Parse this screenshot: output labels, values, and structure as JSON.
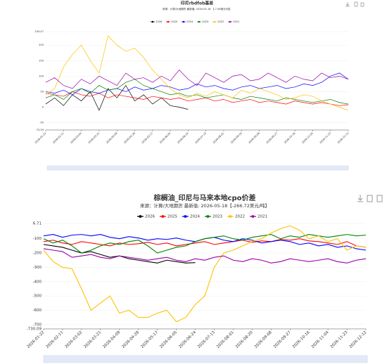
{
  "chart_data": [
    {
      "type": "line",
      "title": "印尼rbdfob基差",
      "subtitle": "来源：计算/大地期货 最新值: 2026-05-18 【-7.06美元/吨】",
      "categories": [
        "2026-01-22",
        null,
        "2026-02-11",
        null,
        "2026-03-02",
        null,
        "2026-03-21",
        null,
        "2026-04-09",
        null,
        "2026-04-28",
        null,
        "2026-05-17",
        null,
        "2026-06-05",
        null,
        "2026-06-24",
        null,
        "2026-07-13",
        null,
        "2026-08-01",
        null,
        "2026-08-20",
        null,
        "2026-09-08",
        null,
        "2026-09-27",
        null,
        "2026-10-16",
        null,
        "2026-11-04",
        null,
        "2026-11-23",
        null,
        "2026-12-12"
      ],
      "ylim": [
        -73.59,
        243.47
      ],
      "yticks": [
        243.47,
        200,
        150,
        100,
        50,
        0,
        -50,
        -73.59
      ],
      "grid": true,
      "series": [
        {
          "name": "2026",
          "color": "#000000",
          "values": [
            10,
            30,
            5,
            40,
            20,
            50,
            -10,
            60,
            30,
            70,
            20,
            40,
            10,
            30,
            5,
            0,
            -7.06,
            null,
            null,
            null,
            null,
            null,
            null,
            null,
            null,
            null,
            null,
            null,
            null,
            null,
            null,
            null,
            null,
            null,
            null
          ]
        },
        {
          "name": "2025",
          "color": "#ff0000",
          "values": [
            45,
            40,
            35,
            50,
            40,
            35,
            45,
            30,
            40,
            35,
            30,
            25,
            35,
            30,
            25,
            30,
            20,
            25,
            30,
            20,
            25,
            15,
            20,
            25,
            15,
            20,
            15,
            10,
            20,
            15,
            10,
            15,
            10,
            5,
            8
          ]
        },
        {
          "name": "2024",
          "color": "#0000ff",
          "values": [
            50,
            45,
            55,
            40,
            60,
            50,
            45,
            55,
            60,
            50,
            65,
            55,
            60,
            70,
            65,
            55,
            60,
            75,
            65,
            70,
            60,
            55,
            65,
            70,
            60,
            65,
            70,
            60,
            65,
            75,
            70,
            80,
            100,
            110,
            90
          ]
        },
        {
          "name": "2023",
          "color": "#008000",
          "values": [
            30,
            40,
            25,
            50,
            60,
            45,
            70,
            55,
            60,
            80,
            90,
            70,
            60,
            50,
            40,
            45,
            35,
            40,
            30,
            35,
            40,
            30,
            25,
            35,
            30,
            25,
            20,
            30,
            25,
            20,
            15,
            20,
            25,
            15,
            10
          ]
        },
        {
          "name": "2022",
          "color": "#ffc000",
          "values": [
            40,
            60,
            130,
            170,
            200,
            150,
            110,
            230,
            200,
            180,
            190,
            160,
            120,
            90,
            60,
            40,
            30,
            45,
            35,
            50,
            40,
            30,
            55,
            45,
            60,
            50,
            40,
            25,
            30,
            40,
            35,
            20,
            10,
            0,
            -10
          ]
        },
        {
          "name": "2021",
          "color": "#9900aa",
          "values": [
            80,
            95,
            70,
            60,
            90,
            75,
            100,
            85,
            70,
            110,
            90,
            95,
            80,
            100,
            85,
            120,
            90,
            70,
            110,
            95,
            80,
            100,
            105,
            85,
            90,
            110,
            95,
            80,
            100,
            90,
            85,
            110,
            95,
            100,
            90
          ]
        }
      ]
    },
    {
      "type": "line",
      "title": "棕榈油_印尼与马来本地cpo价差",
      "subtitle": "来源：计算/大地期货 最新值: 2026-05-18【-266.72美元/吨】",
      "categories": [
        "2026-01-22",
        null,
        "2026-02-11",
        null,
        "2026-03-02",
        null,
        "2026-03-21",
        null,
        "2026-04-09",
        null,
        "2026-04-28",
        null,
        "2026-05-17",
        null,
        "2026-06-05",
        null,
        "2026-06-24",
        null,
        "2026-07-13",
        null,
        "2026-08-01",
        null,
        "2026-08-20",
        null,
        "2026-09-08",
        null,
        "2026-09-27",
        null,
        "2026-10-16",
        null,
        "2026-11-04",
        null,
        "2026-11-23",
        null,
        "2026-12-12"
      ],
      "ylim": [
        -730.09,
        6.71
      ],
      "yticks": [
        6.71,
        -100,
        -200,
        -300,
        -400,
        -500,
        -600,
        -700,
        -730.09
      ],
      "grid": true,
      "series": [
        {
          "name": "2026",
          "color": "#000000",
          "values": [
            -140,
            -150,
            -160,
            -180,
            -200,
            -190,
            -210,
            -230,
            -220,
            -240,
            -250,
            -260,
            -270,
            -250,
            -260,
            -270,
            -266.72,
            null,
            null,
            null,
            null,
            null,
            null,
            null,
            null,
            null,
            null,
            null,
            null,
            null,
            null,
            null,
            null,
            null,
            null
          ]
        },
        {
          "name": "2025",
          "color": "#ff0000",
          "values": [
            -120,
            -110,
            -130,
            -140,
            -120,
            -130,
            -140,
            -150,
            -130,
            -140,
            -135,
            -125,
            -140,
            -130,
            -150,
            -140,
            -130,
            -120,
            -140,
            -130,
            -120,
            -110,
            -125,
            -115,
            -120,
            -105,
            -110,
            -100,
            -115,
            -120,
            -130,
            -140,
            -120,
            -150,
            -160
          ]
        },
        {
          "name": "2024",
          "color": "#0000ff",
          "values": [
            -80,
            -70,
            -90,
            -75,
            -70,
            -80,
            -70,
            -90,
            -100,
            -85,
            -95,
            -110,
            -100,
            -105,
            -95,
            -110,
            -120,
            -100,
            -90,
            -110,
            -120,
            -100,
            -110,
            -130,
            -120,
            -110,
            -120,
            -140,
            -130,
            -150,
            -140,
            -160,
            -150,
            -170,
            -180
          ]
        },
        {
          "name": "2023",
          "color": "#008000",
          "values": [
            -100,
            -130,
            -110,
            -150,
            -200,
            -180,
            -150,
            -130,
            -140,
            -120,
            -110,
            -150,
            -200,
            -180,
            -160,
            -150,
            -120,
            -100,
            -90,
            -80,
            -100,
            -110,
            -90,
            -80,
            -70,
            -100,
            -80,
            -90,
            -70,
            -80,
            -90,
            -80,
            -70,
            -80,
            -75
          ]
        },
        {
          "name": "2022",
          "color": "#ffc000",
          "values": [
            -180,
            -260,
            -300,
            -310,
            -450,
            -600,
            -550,
            -500,
            -620,
            -600,
            -650,
            -650,
            -620,
            -600,
            -680,
            -650,
            -560,
            -500,
            -300,
            -200,
            -180,
            -150,
            -120,
            -100,
            -60,
            -30,
            -10,
            -40,
            -100,
            -80,
            -120,
            -100,
            -180,
            -150,
            -160
          ]
        },
        {
          "name": "2021",
          "color": "#9900aa",
          "values": [
            -170,
            -180,
            -190,
            -230,
            -220,
            -210,
            -230,
            -240,
            -220,
            -230,
            -240,
            -250,
            -240,
            -230,
            -250,
            -260,
            -240,
            -250,
            -230,
            -220,
            -250,
            -260,
            -240,
            -250,
            -270,
            -260,
            -240,
            -250,
            -260,
            -250,
            -240,
            -260,
            -270,
            -250,
            -240
          ]
        }
      ]
    }
  ]
}
